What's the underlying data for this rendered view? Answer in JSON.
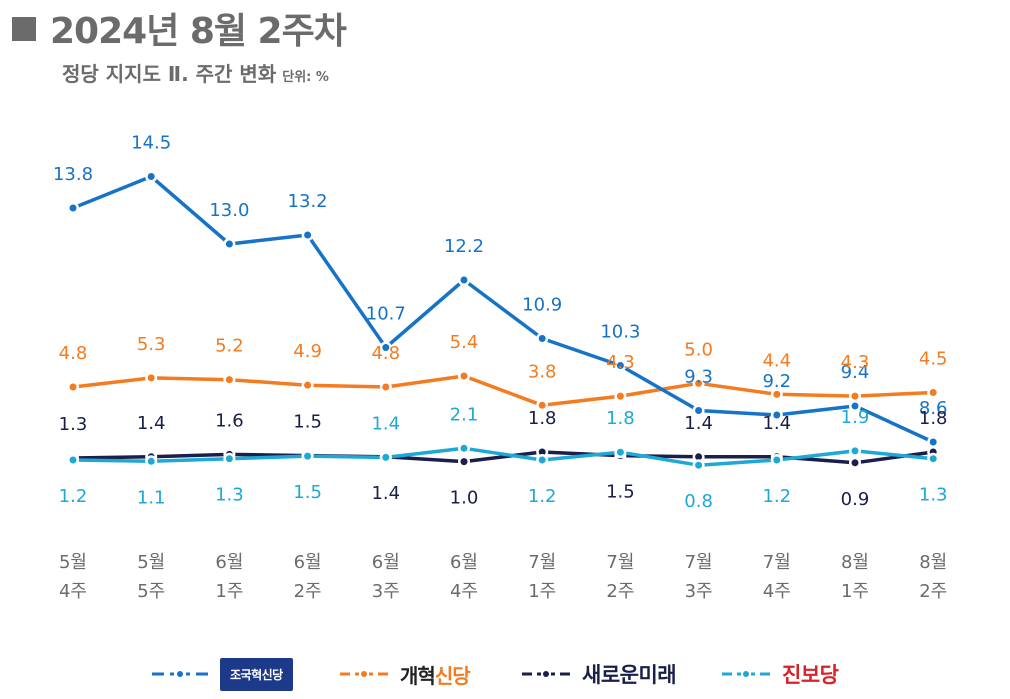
{
  "header": {
    "title": "2024년 8월 2주차",
    "subtitle": "정당 지지도 Ⅱ. 주간 변화",
    "unit": "단위: %"
  },
  "chart_data": {
    "type": "line",
    "title": "정당 지지도 Ⅱ. 주간 변화",
    "categories": [
      [
        "5월",
        "4주"
      ],
      [
        "5월",
        "5주"
      ],
      [
        "6월",
        "1주"
      ],
      [
        "6월",
        "2주"
      ],
      [
        "6월",
        "3주"
      ],
      [
        "6월",
        "4주"
      ],
      [
        "7월",
        "1주"
      ],
      [
        "7월",
        "2주"
      ],
      [
        "7월",
        "3주"
      ],
      [
        "7월",
        "4주"
      ],
      [
        "8월",
        "1주"
      ],
      [
        "8월",
        "2주"
      ]
    ],
    "series": [
      {
        "name": "조국혁신당",
        "color": "#1673c7",
        "values": [
          13.8,
          14.5,
          13.0,
          13.2,
          10.7,
          12.2,
          10.9,
          10.3,
          9.3,
          9.2,
          9.4,
          8.6
        ],
        "labels": [
          "13.8",
          "14.5",
          "13.0",
          "13.2",
          "10.7",
          "12.2",
          "10.9",
          "10.3",
          "9.3",
          "9.2",
          "9.4",
          "8.6"
        ]
      },
      {
        "name": "개혁신당",
        "color": "#f47b20",
        "values": [
          4.8,
          5.3,
          5.2,
          4.9,
          4.8,
          5.4,
          3.8,
          4.3,
          5.0,
          4.4,
          4.3,
          4.5
        ],
        "labels": [
          "4.8",
          "5.3",
          "5.2",
          "4.9",
          "4.8",
          "5.4",
          "3.8",
          "4.3",
          "5.0",
          "4.4",
          "4.3",
          "4.5"
        ]
      },
      {
        "name": "새로운미래",
        "color": "#1a1f4a",
        "values": [
          1.3,
          1.4,
          1.6,
          1.5,
          1.4,
          1.0,
          1.8,
          1.5,
          1.4,
          1.4,
          0.9,
          1.8
        ],
        "labels": [
          "1.3",
          "1.4",
          "1.6",
          "1.5",
          "1.4",
          "1.0",
          "1.8",
          "1.5",
          "1.4",
          "1.4",
          "0.9",
          "1.8"
        ]
      },
      {
        "name": "진보당",
        "color": "#1ea8d8",
        "values": [
          1.2,
          1.1,
          1.3,
          1.5,
          1.4,
          2.1,
          1.2,
          1.8,
          0.8,
          1.2,
          1.9,
          1.3
        ],
        "labels": [
          "1.2",
          "1.1",
          "1.3",
          "1.5",
          "1.4",
          "2.1",
          "1.2",
          "1.8",
          "0.8",
          "1.2",
          "1.9",
          "1.3"
        ]
      }
    ]
  },
  "legend": {
    "items": [
      {
        "label": "조국혁신당",
        "color": "#1673c7"
      },
      {
        "label_main": "개혁",
        "label_accent": "신당",
        "color": "#f47b20"
      },
      {
        "label": "새로운미래",
        "color": "#1a1f4a"
      },
      {
        "label": "진보당",
        "color": "#1ea8d8"
      }
    ]
  }
}
